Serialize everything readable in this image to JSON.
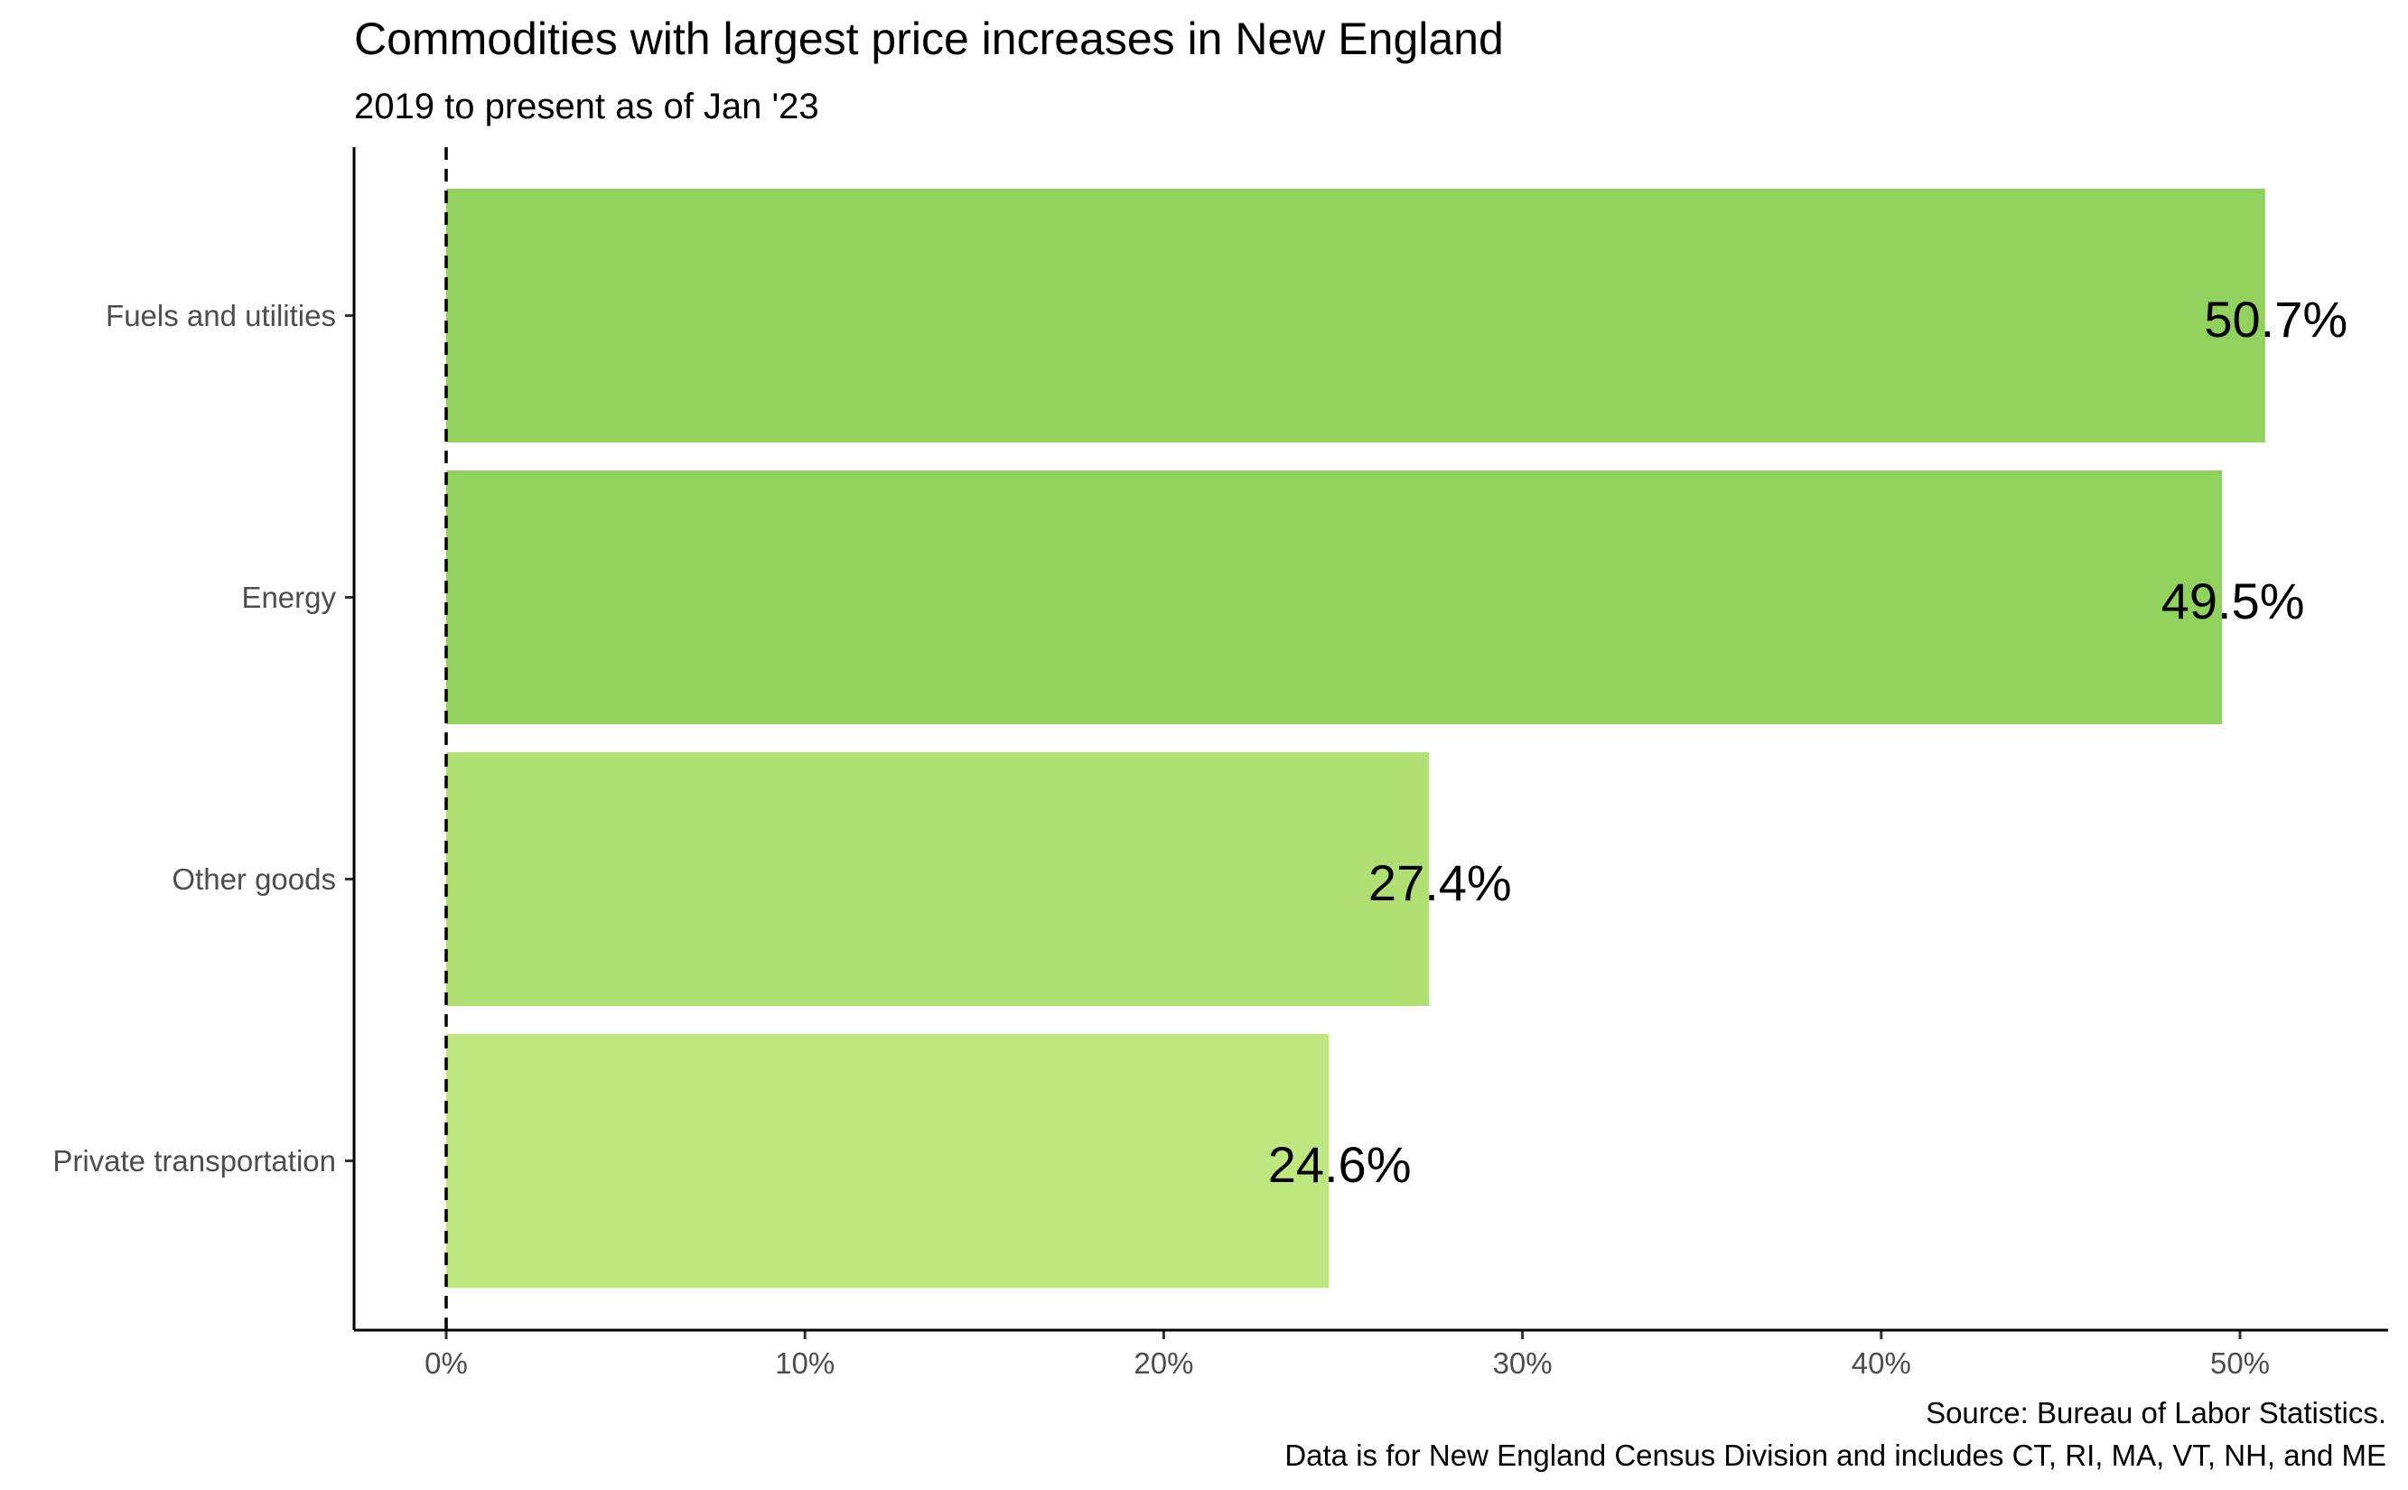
{
  "chart_data": {
    "type": "bar",
    "orientation": "horizontal",
    "title": "Commodities with largest price increases in New England",
    "subtitle": "2019 to present as of Jan '23",
    "categories": [
      "Fuels and utilities",
      "Energy",
      "Other goods",
      "Private transportation"
    ],
    "values": [
      50.7,
      49.5,
      27.4,
      24.6
    ],
    "value_labels": [
      "50.7%",
      "49.5%",
      "27.4%",
      "24.6%"
    ],
    "bar_colors": [
      "#91d15e",
      "#91d15e",
      "#b0df73",
      "#bfe780"
    ],
    "xlim": [
      -2.6,
      54.3
    ],
    "x_ticks": [
      0,
      10,
      20,
      30,
      40,
      50
    ],
    "x_tick_labels": [
      "0%",
      "10%",
      "20%",
      "30%",
      "40%",
      "50%"
    ],
    "reference_line": {
      "x": 0,
      "style": "dashed"
    },
    "xlabel": "",
    "ylabel": "",
    "grid": false,
    "legend": "none",
    "caption": [
      "Source: Bureau of Labor Statistics.",
      "Data is for New England Census Division and includes CT, RI, MA, VT, NH, and ME"
    ]
  }
}
